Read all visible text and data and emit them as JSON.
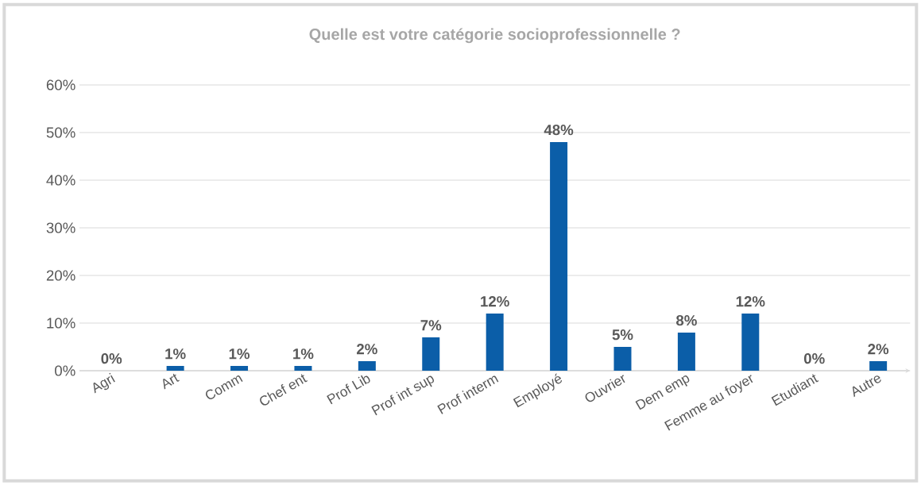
{
  "chart_data": {
    "type": "bar",
    "title": "Quelle est votre catégorie socioprofessionnelle  ?",
    "categories": [
      "Agri",
      "Art",
      "Comm",
      "Chef ent",
      "Prof Lib",
      "Prof int sup",
      "Prof interm",
      "Employé",
      "Ouvrier",
      "Dem emp",
      "Femme au foyer",
      "Etudiant",
      "Autre"
    ],
    "values": [
      0,
      1,
      1,
      1,
      2,
      7,
      12,
      48,
      5,
      8,
      12,
      0,
      2
    ],
    "value_labels": [
      "0%",
      "1%",
      "1%",
      "1%",
      "2%",
      "7%",
      "12%",
      "48%",
      "5%",
      "8%",
      "12%",
      "0%",
      "2%"
    ],
    "color": "#0b5ea8",
    "ylim": [
      0,
      60
    ],
    "yticks": [
      {
        "value": 0,
        "label": "0%"
      },
      {
        "value": 10,
        "label": "10%"
      },
      {
        "value": 20,
        "label": "20%"
      },
      {
        "value": 30,
        "label": "30%"
      },
      {
        "value": 40,
        "label": "40%"
      },
      {
        "value": 50,
        "label": "50%"
      },
      {
        "value": 60,
        "label": "60%"
      }
    ],
    "grid": "y"
  }
}
